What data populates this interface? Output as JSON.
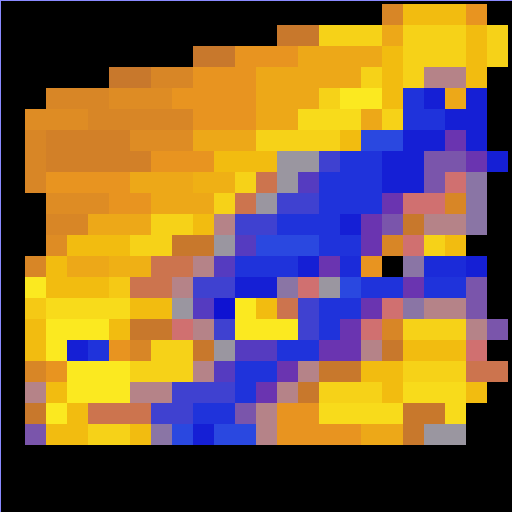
{
  "chart_data": {
    "type": "heatmap",
    "tick_labels": false,
    "zlim": [
      0,
      1
    ],
    "cells": [
      [
        null,
        null,
        null,
        null,
        null,
        null,
        null,
        null,
        null,
        null,
        null,
        null,
        null,
        null,
        null,
        null,
        null,
        null,
        0.7,
        0.85,
        0.85,
        0.85,
        0.75,
        null
      ],
      [
        null,
        null,
        null,
        null,
        null,
        null,
        null,
        null,
        null,
        null,
        null,
        null,
        null,
        0.65,
        0.65,
        0.9,
        0.9,
        0.9,
        0.8,
        0.9,
        0.9,
        0.9,
        0.85,
        0.9
      ],
      [
        null,
        null,
        null,
        null,
        null,
        null,
        null,
        null,
        null,
        0.65,
        0.65,
        0.75,
        0.75,
        0.75,
        0.8,
        0.8,
        0.8,
        0.8,
        0.85,
        0.9,
        0.9,
        0.9,
        0.85,
        0.9
      ],
      [
        null,
        null,
        null,
        null,
        null,
        0.65,
        0.65,
        0.7,
        0.7,
        0.75,
        0.75,
        0.75,
        0.8,
        0.8,
        0.8,
        0.8,
        0.8,
        0.9,
        0.85,
        0.9,
        0.5,
        0.5,
        0.85,
        null
      ],
      [
        null,
        null,
        0.7,
        0.7,
        0.7,
        0.72,
        0.72,
        0.72,
        0.75,
        0.75,
        0.75,
        0.75,
        0.8,
        0.8,
        0.8,
        0.9,
        0.95,
        0.95,
        0.85,
        0.1,
        0.05,
        0.8,
        0.05,
        null
      ],
      [
        null,
        0.72,
        0.72,
        0.72,
        0.7,
        0.7,
        0.7,
        0.7,
        0.7,
        0.75,
        0.75,
        0.75,
        0.8,
        0.8,
        0.92,
        0.92,
        0.92,
        0.8,
        0.9,
        0.1,
        0.1,
        0.05,
        0.05,
        null
      ],
      [
        null,
        0.7,
        0.68,
        0.68,
        0.68,
        0.68,
        0.72,
        0.72,
        0.72,
        0.8,
        0.8,
        0.8,
        0.9,
        0.9,
        0.9,
        0.9,
        0.85,
        0.15,
        0.15,
        0.05,
        0.05,
        0.3,
        0.05,
        null
      ],
      [
        null,
        0.7,
        0.68,
        0.68,
        0.68,
        0.68,
        0.68,
        0.75,
        0.75,
        0.75,
        0.85,
        0.85,
        0.85,
        0.45,
        0.45,
        0.2,
        0.1,
        0.1,
        0.05,
        0.05,
        0.35,
        0.35,
        0.3,
        0.05
      ],
      [
        null,
        0.7,
        0.75,
        0.75,
        0.75,
        0.75,
        0.8,
        0.8,
        0.8,
        0.82,
        0.82,
        0.9,
        0.6,
        0.45,
        0.25,
        0.1,
        0.1,
        0.1,
        0.05,
        0.05,
        0.35,
        0.55,
        0.4,
        null
      ],
      [
        null,
        null,
        0.72,
        0.72,
        0.72,
        0.75,
        0.75,
        0.8,
        0.8,
        0.8,
        0.9,
        0.6,
        0.45,
        0.2,
        0.2,
        0.1,
        0.1,
        0.1,
        0.3,
        0.55,
        0.55,
        0.7,
        0.4,
        null
      ],
      [
        null,
        null,
        0.7,
        0.7,
        0.8,
        0.8,
        0.8,
        0.9,
        0.9,
        0.85,
        0.5,
        0.2,
        0.2,
        0.1,
        0.1,
        0.1,
        0.05,
        0.3,
        0.35,
        0.65,
        0.5,
        0.5,
        0.4,
        null
      ],
      [
        null,
        null,
        0.72,
        0.85,
        0.85,
        0.85,
        0.9,
        0.9,
        0.65,
        0.65,
        0.45,
        0.25,
        0.15,
        0.15,
        0.15,
        0.1,
        0.1,
        0.3,
        0.7,
        0.55,
        0.9,
        0.85,
        null,
        null
      ],
      [
        null,
        0.7,
        0.85,
        0.8,
        0.8,
        0.82,
        0.82,
        0.6,
        0.6,
        0.5,
        0.25,
        0.1,
        0.1,
        0.1,
        0.05,
        0.3,
        0.08,
        0.75,
        null,
        0.4,
        0.08,
        0.08,
        0.05,
        null
      ],
      [
        null,
        0.95,
        0.85,
        0.85,
        0.85,
        0.88,
        0.6,
        0.6,
        0.5,
        0.2,
        0.2,
        0.05,
        0.05,
        0.4,
        0.55,
        0.45,
        0.15,
        0.1,
        0.1,
        0.3,
        0.1,
        0.1,
        0.35,
        null
      ],
      [
        null,
        0.88,
        0.92,
        0.92,
        0.92,
        0.92,
        0.85,
        0.85,
        0.45,
        0.25,
        0.02,
        0.95,
        0.85,
        0.6,
        0.2,
        0.1,
        0.1,
        0.3,
        0.55,
        0.4,
        0.5,
        0.5,
        0.35,
        null
      ],
      [
        null,
        0.85,
        0.95,
        0.95,
        0.95,
        0.85,
        0.65,
        0.65,
        0.55,
        0.5,
        0.2,
        0.95,
        0.95,
        0.95,
        0.2,
        0.1,
        0.3,
        0.55,
        0.7,
        0.9,
        0.9,
        0.9,
        0.5,
        0.35
      ],
      [
        null,
        0.85,
        0.95,
        0.05,
        0.1,
        0.75,
        0.7,
        0.9,
        0.9,
        0.65,
        0.45,
        0.25,
        0.25,
        0.1,
        0.1,
        0.3,
        0.3,
        0.5,
        0.65,
        0.85,
        0.85,
        0.85,
        0.55,
        null
      ],
      [
        null,
        0.7,
        0.75,
        0.95,
        0.95,
        0.95,
        0.9,
        0.9,
        0.9,
        0.5,
        0.25,
        0.1,
        0.1,
        0.3,
        0.5,
        0.65,
        0.65,
        0.85,
        0.85,
        0.9,
        0.9,
        0.9,
        0.6,
        0.6
      ],
      [
        null,
        0.5,
        0.85,
        0.95,
        0.95,
        0.95,
        0.5,
        0.5,
        0.2,
        0.2,
        0.2,
        0.1,
        0.3,
        0.5,
        0.65,
        0.9,
        0.9,
        0.9,
        0.85,
        0.92,
        0.92,
        0.92,
        0.85,
        null
      ],
      [
        null,
        0.65,
        0.95,
        0.85,
        0.6,
        0.6,
        0.6,
        0.2,
        0.2,
        0.1,
        0.1,
        0.35,
        0.5,
        0.75,
        0.75,
        0.92,
        0.92,
        0.92,
        0.92,
        0.65,
        0.65,
        0.92,
        null,
        null
      ],
      [
        null,
        0.35,
        0.85,
        0.85,
        0.9,
        0.9,
        0.85,
        0.4,
        0.15,
        0.05,
        0.15,
        0.15,
        0.5,
        0.75,
        0.75,
        0.75,
        0.75,
        0.8,
        0.8,
        0.65,
        0.45,
        0.45,
        null,
        null
      ],
      [
        null,
        null,
        null,
        null,
        null,
        null,
        null,
        null,
        null,
        null,
        null,
        null,
        null,
        null,
        null,
        null,
        null,
        null,
        null,
        null,
        null,
        null,
        null,
        null
      ],
      [
        null,
        null,
        null,
        null,
        null,
        null,
        null,
        null,
        null,
        null,
        null,
        null,
        null,
        null,
        null,
        null,
        null,
        null,
        null,
        null,
        null,
        null,
        null,
        null
      ],
      [
        null,
        null,
        null,
        null,
        null,
        null,
        null,
        null,
        null,
        null,
        null,
        null,
        null,
        null,
        null,
        null,
        null,
        null,
        null,
        null,
        null,
        null,
        null,
        null
      ]
    ]
  }
}
